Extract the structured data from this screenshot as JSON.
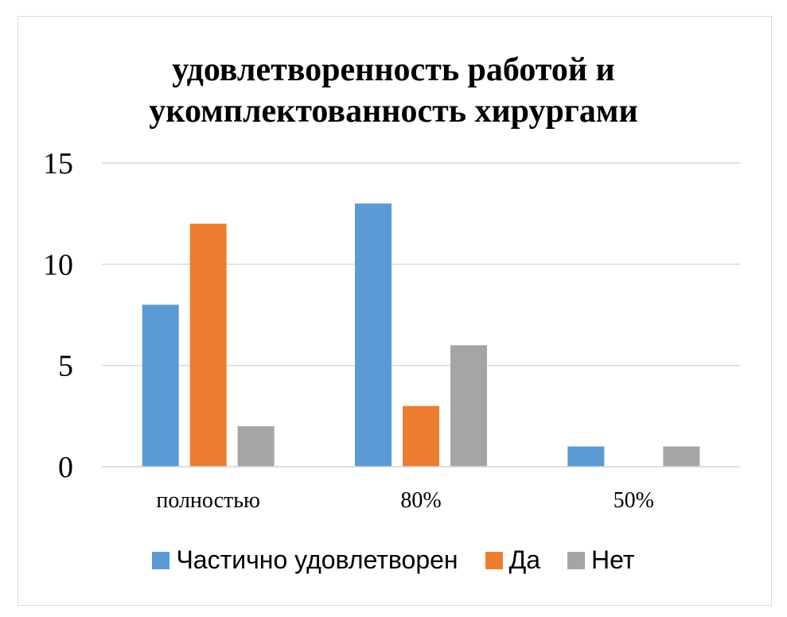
{
  "chart_data": {
    "type": "bar",
    "title_lines": [
      "удовлетворенность работой и",
      "укомплектованность хирургами"
    ],
    "categories": [
      "полностью",
      "80%",
      "50%"
    ],
    "series": [
      {
        "name": "Частично удовлетворен",
        "color": "#5b9bd5",
        "values": [
          8,
          13,
          1
        ]
      },
      {
        "name": "Да",
        "color": "#ed7d31",
        "values": [
          12,
          3,
          0
        ]
      },
      {
        "name": "Нет",
        "color": "#a5a5a5",
        "values": [
          2,
          6,
          1
        ]
      }
    ],
    "ylim": [
      0,
      15
    ],
    "yticks": [
      0,
      5,
      10,
      15
    ],
    "grid": true,
    "legend_position": "bottom"
  }
}
